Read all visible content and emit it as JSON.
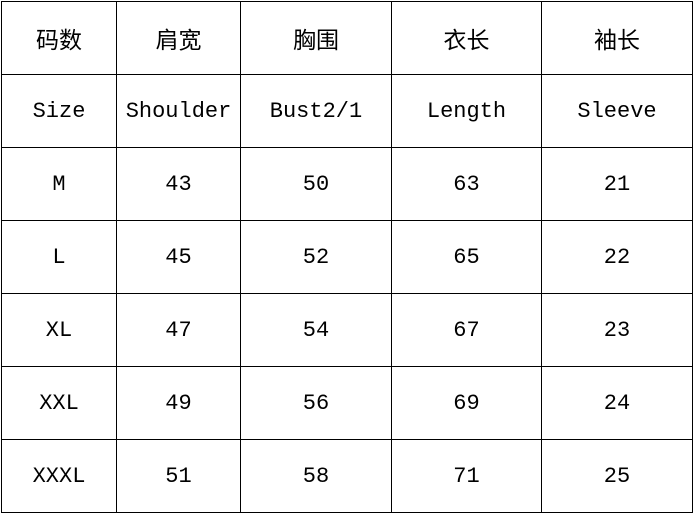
{
  "header_cn": [
    "码数",
    "肩宽",
    "胸围",
    "衣长",
    "袖长"
  ],
  "header_en": [
    "Size",
    "Shoulder",
    "Bust2/1",
    "Length",
    "Sleeve"
  ],
  "rows": [
    [
      "M",
      "43",
      "50",
      "63",
      "21"
    ],
    [
      "L",
      "45",
      "52",
      "65",
      "22"
    ],
    [
      "XL",
      "47",
      "54",
      "67",
      "23"
    ],
    [
      "XXL",
      "49",
      "56",
      "69",
      "24"
    ],
    [
      "XXXL",
      "51",
      "58",
      "71",
      "25"
    ]
  ]
}
